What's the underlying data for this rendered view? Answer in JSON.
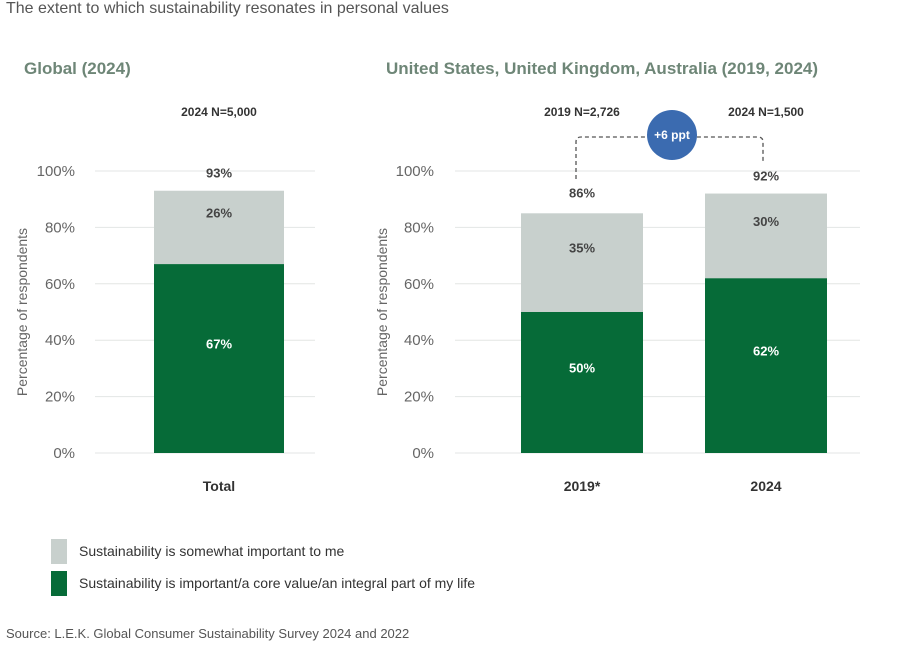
{
  "title": "The extent to which sustainability resonates in personal values",
  "source": "Source: L.E.K. Global Consumer Sustainability Survey 2024 and 2022",
  "colors": {
    "somewhat": "#c8d0cd",
    "core": "#066b38",
    "heading": "#6e8677",
    "badge": "#3b6bb0",
    "grid": "#e3e6e4",
    "axis_text": "#666666"
  },
  "legend": [
    {
      "key": "somewhat",
      "label": "Sustainability is somewhat important to me"
    },
    {
      "key": "core",
      "label": "Sustainability is important/a core value/an integral part of my life"
    }
  ],
  "chart_data": [
    {
      "type": "bar",
      "stacked": true,
      "title": "Global (2024)",
      "ylabel": "Percentage of respondents",
      "ylim": [
        0,
        100
      ],
      "yticks": [
        "0%",
        "20%",
        "40%",
        "60%",
        "80%",
        "100%"
      ],
      "categories": [
        "Total"
      ],
      "sample_labels": [
        "2024 N=5,000"
      ],
      "totals": [
        93
      ],
      "total_labels": [
        "93%"
      ],
      "series": [
        {
          "name": "Sustainability is important/a core value/an integral part of my life",
          "key": "core",
          "values": [
            67
          ],
          "labels": [
            "67%"
          ]
        },
        {
          "name": "Sustainability is somewhat important to me",
          "key": "somewhat",
          "values": [
            26
          ],
          "labels": [
            "26%"
          ]
        }
      ]
    },
    {
      "type": "bar",
      "stacked": true,
      "title": "United States, United Kingdom, Australia (2019, 2024)",
      "ylabel": "Percentage of respondents",
      "ylim": [
        0,
        100
      ],
      "yticks": [
        "0%",
        "20%",
        "40%",
        "60%",
        "80%",
        "100%"
      ],
      "categories": [
        "2019*",
        "2024"
      ],
      "sample_labels": [
        "2019 N=2,726",
        "2024 N=1,500"
      ],
      "totals": [
        86,
        92
      ],
      "total_labels": [
        "86%",
        "92%"
      ],
      "series": [
        {
          "name": "Sustainability is important/a core value/an integral part of my life",
          "key": "core",
          "values": [
            50,
            62
          ],
          "labels": [
            "50%",
            "62%"
          ]
        },
        {
          "name": "Sustainability is somewhat important to me",
          "key": "somewhat",
          "values": [
            35,
            30
          ],
          "labels": [
            "35%",
            "30%"
          ]
        }
      ],
      "change_label": "+6 ppt"
    }
  ]
}
